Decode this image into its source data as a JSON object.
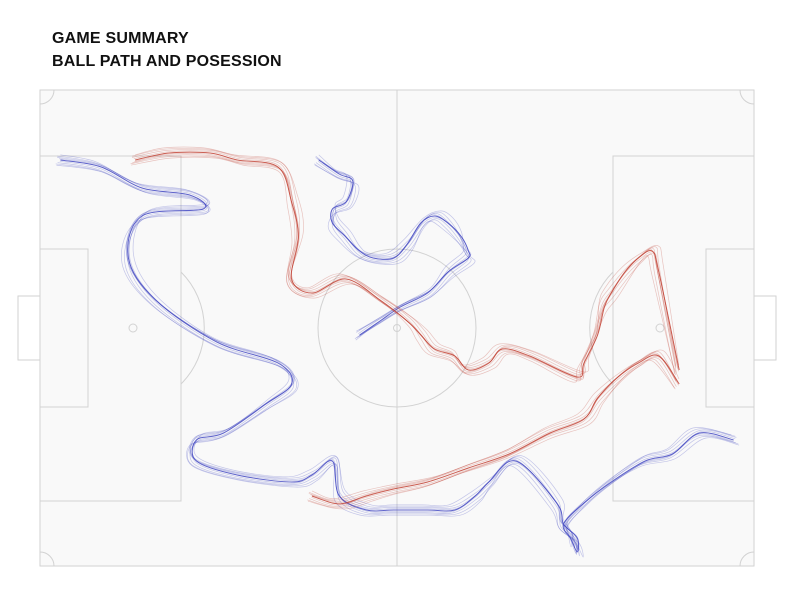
{
  "header": {
    "title": "GAME SUMMARY",
    "subtitle": "BALL PATH AND POSESSION"
  },
  "colors": {
    "pitch_fill": "#f9f9f9",
    "pitch_lines": "#d2d2d2",
    "team_red": "#c0392b",
    "team_blue": "#3a3fc0"
  },
  "chart_data": {
    "type": "line",
    "title": "GAME SUMMARY",
    "subtitle": "BALL PATH AND POSESSION",
    "x_unit": "meters along pitch length",
    "y_unit": "meters along pitch width",
    "xlim": [
      0,
      105
    ],
    "ylim": [
      0,
      68
    ],
    "series": [
      {
        "team": "blue",
        "x": [
          3,
          9,
          15,
          22,
          24,
          15,
          13,
          17,
          26,
          35,
          37,
          33,
          27,
          23,
          23,
          29,
          37,
          40,
          43,
          44,
          48,
          52,
          57,
          61,
          64,
          66,
          70,
          76,
          77,
          79,
          79,
          78,
          77,
          80,
          84,
          89,
          93,
          97,
          102
        ],
        "y": [
          58,
          57,
          54,
          53,
          51,
          50,
          44,
          38,
          32,
          29,
          26,
          23,
          19,
          18,
          15,
          13,
          12,
          13,
          15,
          10,
          8,
          8,
          8,
          8,
          10,
          12,
          15,
          9,
          6,
          4,
          2,
          4,
          6,
          9,
          12,
          15,
          16,
          19,
          18
        ]
      },
      {
        "team": "blue",
        "x": [
          41,
          44,
          46,
          45,
          43,
          43,
          45,
          47,
          49,
          52,
          54,
          56,
          58,
          60,
          62,
          63,
          63,
          60,
          57,
          53,
          50,
          47
        ],
        "y": [
          58,
          56,
          55,
          52,
          51,
          49,
          47,
          45,
          44,
          44,
          46,
          49,
          50,
          49,
          47,
          45,
          44,
          42,
          39,
          37,
          35,
          33
        ]
      },
      {
        "team": "red",
        "x": [
          14,
          19,
          25,
          29,
          35,
          37,
          38,
          37,
          40,
          45,
          50,
          54,
          56,
          58,
          61,
          63,
          66,
          68,
          72,
          79,
          80,
          82,
          83,
          84,
          86,
          88,
          90,
          91,
          94
        ],
        "y": [
          58,
          59,
          59,
          58,
          57,
          52,
          47,
          41,
          39,
          41,
          38,
          35,
          33,
          31,
          30,
          28,
          29,
          31,
          30,
          27,
          29,
          33,
          37,
          39,
          42,
          44,
          45,
          42,
          28
        ]
      },
      {
        "team": "red",
        "x": [
          40,
          43,
          45,
          48,
          52,
          57,
          63,
          69,
          75,
          80,
          82,
          85,
          88,
          91,
          94
        ],
        "y": [
          10,
          9,
          9,
          10,
          11,
          12,
          14,
          16,
          19,
          21,
          24,
          27,
          29,
          30,
          26
        ]
      }
    ]
  }
}
